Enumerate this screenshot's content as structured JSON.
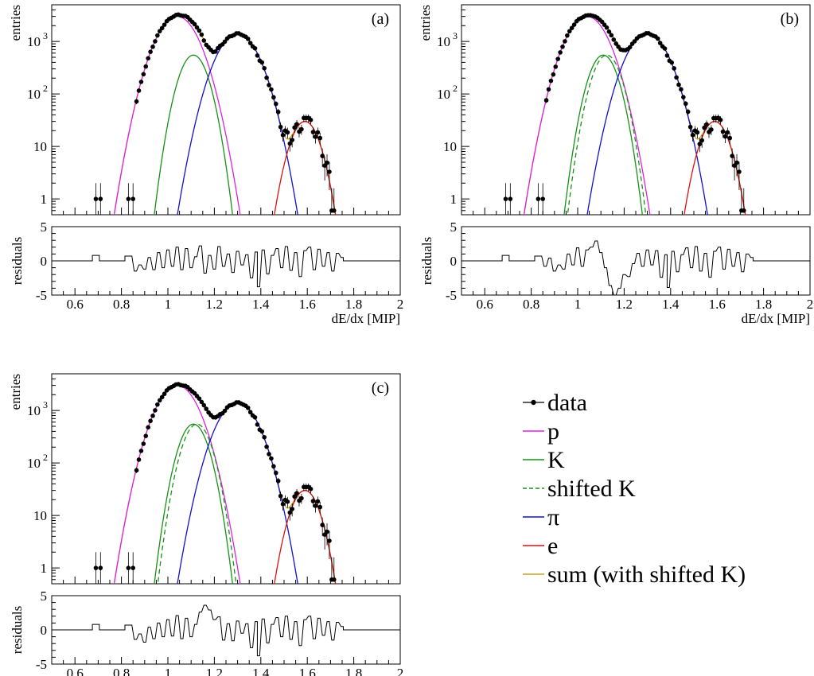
{
  "chart_data": {
    "type": "line",
    "xlabel": "dE/dx [MIP]",
    "ylabel": "entries",
    "residual_ylabel": "residuals",
    "xlim": [
      0.5,
      2.0
    ],
    "ylim": [
      0.5,
      5000
    ],
    "yscale": "log",
    "residual_ylim": [
      -5,
      5
    ],
    "x_ticks": [
      0.6,
      0.8,
      1.0,
      1.2,
      1.4,
      1.6,
      1.8,
      2.0
    ],
    "x_tick_labels": [
      "0.6",
      "0.8",
      "1",
      "1.2",
      "1.4",
      "1.6",
      "1.8",
      "2"
    ],
    "y_tick_labels": [
      {
        "value": 1,
        "label": "1"
      },
      {
        "value": 10,
        "label": "10"
      },
      {
        "value": 100,
        "label": "10",
        "exp": "2"
      },
      {
        "value": 1000,
        "label": "10",
        "exp": "3"
      }
    ],
    "residual_tick_labels": [
      {
        "value": 5,
        "label": "5"
      },
      {
        "value": 0,
        "label": "0"
      },
      {
        "value": -5,
        "label": "-5"
      }
    ],
    "grid": false,
    "legend_position": "right",
    "legend": [
      {
        "label": "data",
        "style": "marker",
        "color": "#000000"
      },
      {
        "label": "p",
        "style": "line",
        "color": "#e020e0"
      },
      {
        "label": "K",
        "style": "line",
        "color": "#169116"
      },
      {
        "label": "shifted K",
        "style": "dashed",
        "color": "#169116"
      },
      {
        "label": "π",
        "style": "line",
        "color": "#1010d0"
      },
      {
        "label": "e",
        "style": "line",
        "color": "#e01010"
      },
      {
        "label": "sum (with shifted K)",
        "style": "line",
        "color": "#c9a227"
      }
    ],
    "components": [
      {
        "label": "p",
        "amplitude": 3000,
        "mean": 1.04,
        "sigma": 0.065
      },
      {
        "label": "K",
        "amplitude": 550,
        "mean": 1.11,
        "sigma": 0.045
      },
      {
        "label": "shifted K",
        "amplitude": 550,
        "mean": 1.125,
        "sigma": 0.045
      },
      {
        "label": "π",
        "amplitude": 1400,
        "mean": 1.3,
        "sigma": 0.065
      },
      {
        "label": "e",
        "amplitude": 30,
        "mean": 1.59,
        "sigma": 0.046
      }
    ],
    "panels": [
      {
        "label": "(a)",
        "show_shifted_k": false,
        "isolated_points": [
          {
            "x": 0.69,
            "y": 1
          },
          {
            "x": 0.71,
            "y": 1
          },
          {
            "x": 0.83,
            "y": 1
          },
          {
            "x": 0.85,
            "y": 1
          }
        ],
        "residuals": [
          {
            "x": 0.68,
            "r": 0.8
          },
          {
            "x": 0.7,
            "r": 0.8
          },
          {
            "x": 0.82,
            "r": 0.7
          },
          {
            "x": 0.84,
            "r": 0.7
          },
          {
            "x": 0.86,
            "r": -1.5
          },
          {
            "x": 0.88,
            "r": -0.6
          },
          {
            "x": 0.9,
            "r": -1.2
          },
          {
            "x": 0.92,
            "r": 0.5
          },
          {
            "x": 0.94,
            "r": -1.3
          },
          {
            "x": 0.96,
            "r": 1.2
          },
          {
            "x": 0.98,
            "r": -1.0
          },
          {
            "x": 1.0,
            "r": 1.6
          },
          {
            "x": 1.02,
            "r": -0.8
          },
          {
            "x": 1.04,
            "r": 2.0
          },
          {
            "x": 1.06,
            "r": -1.3
          },
          {
            "x": 1.08,
            "r": 1.8
          },
          {
            "x": 1.1,
            "r": -1.0
          },
          {
            "x": 1.12,
            "r": 0.6
          },
          {
            "x": 1.14,
            "r": 2.2
          },
          {
            "x": 1.16,
            "r": -1.8
          },
          {
            "x": 1.18,
            "r": 0.8
          },
          {
            "x": 1.2,
            "r": -1.2
          },
          {
            "x": 1.22,
            "r": 2.1
          },
          {
            "x": 1.24,
            "r": -0.8
          },
          {
            "x": 1.26,
            "r": 1.0
          },
          {
            "x": 1.28,
            "r": -1.7
          },
          {
            "x": 1.3,
            "r": 1.4
          },
          {
            "x": 1.32,
            "r": -0.6
          },
          {
            "x": 1.34,
            "r": 0.9
          },
          {
            "x": 1.36,
            "r": -2.5
          },
          {
            "x": 1.38,
            "r": 1.3
          },
          {
            "x": 1.39,
            "r": -3.8
          },
          {
            "x": 1.41,
            "r": 1.6
          },
          {
            "x": 1.43,
            "r": -1.9
          },
          {
            "x": 1.45,
            "r": 0.8
          },
          {
            "x": 1.47,
            "r": 1.8
          },
          {
            "x": 1.49,
            "r": -1.0
          },
          {
            "x": 1.51,
            "r": 2.1
          },
          {
            "x": 1.53,
            "r": -1.4
          },
          {
            "x": 1.55,
            "r": 1.2
          },
          {
            "x": 1.57,
            "r": -2.3
          },
          {
            "x": 1.59,
            "r": 1.5
          },
          {
            "x": 1.61,
            "r": 2.0
          },
          {
            "x": 1.63,
            "r": -1.3
          },
          {
            "x": 1.65,
            "r": 1.7
          },
          {
            "x": 1.67,
            "r": -0.8
          },
          {
            "x": 1.69,
            "r": 1.2
          },
          {
            "x": 1.71,
            "r": -1.5
          },
          {
            "x": 1.73,
            "r": 1.1
          },
          {
            "x": 1.75,
            "r": 0.5
          }
        ]
      },
      {
        "label": "(b)",
        "show_shifted_k": true,
        "isolated_points": [
          {
            "x": 0.69,
            "y": 1
          },
          {
            "x": 0.71,
            "y": 1
          },
          {
            "x": 0.83,
            "y": 1
          },
          {
            "x": 0.85,
            "y": 1
          }
        ],
        "residuals": [
          {
            "x": 0.68,
            "r": 0.8
          },
          {
            "x": 0.7,
            "r": 0.8
          },
          {
            "x": 0.82,
            "r": 0.7
          },
          {
            "x": 0.84,
            "r": 0.7
          },
          {
            "x": 0.86,
            "r": -0.8
          },
          {
            "x": 0.88,
            "r": 0.4
          },
          {
            "x": 0.9,
            "r": -1.5
          },
          {
            "x": 0.92,
            "r": -0.6
          },
          {
            "x": 0.94,
            "r": -1.2
          },
          {
            "x": 0.96,
            "r": 1.0
          },
          {
            "x": 0.98,
            "r": -0.6
          },
          {
            "x": 1.0,
            "r": 1.9
          },
          {
            "x": 1.02,
            "r": -0.8
          },
          {
            "x": 1.04,
            "r": 1.6
          },
          {
            "x": 1.06,
            "r": 2.0
          },
          {
            "x": 1.08,
            "r": 2.9
          },
          {
            "x": 1.1,
            "r": 1.2
          },
          {
            "x": 1.12,
            "r": -1.0
          },
          {
            "x": 1.14,
            "r": -3.6
          },
          {
            "x": 1.16,
            "r": -5.0
          },
          {
            "x": 1.18,
            "r": -4.0
          },
          {
            "x": 1.2,
            "r": -2.0
          },
          {
            "x": 1.22,
            "r": -2.3
          },
          {
            "x": 1.24,
            "r": -0.4
          },
          {
            "x": 1.26,
            "r": 1.1
          },
          {
            "x": 1.28,
            "r": -0.8
          },
          {
            "x": 1.3,
            "r": 1.6
          },
          {
            "x": 1.32,
            "r": -0.6
          },
          {
            "x": 1.34,
            "r": 1.5
          },
          {
            "x": 1.36,
            "r": -2.4
          },
          {
            "x": 1.38,
            "r": 0.9
          },
          {
            "x": 1.39,
            "r": -3.9
          },
          {
            "x": 1.41,
            "r": 1.4
          },
          {
            "x": 1.43,
            "r": -1.6
          },
          {
            "x": 1.45,
            "r": 0.9
          },
          {
            "x": 1.47,
            "r": 1.9
          },
          {
            "x": 1.49,
            "r": -1.0
          },
          {
            "x": 1.51,
            "r": 2.1
          },
          {
            "x": 1.53,
            "r": -1.5
          },
          {
            "x": 1.55,
            "r": 1.1
          },
          {
            "x": 1.57,
            "r": -2.4
          },
          {
            "x": 1.59,
            "r": 1.4
          },
          {
            "x": 1.61,
            "r": 2.0
          },
          {
            "x": 1.63,
            "r": -1.2
          },
          {
            "x": 1.65,
            "r": 1.7
          },
          {
            "x": 1.67,
            "r": -0.8
          },
          {
            "x": 1.69,
            "r": 1.2
          },
          {
            "x": 1.71,
            "r": -1.6
          },
          {
            "x": 1.73,
            "r": 1.0
          },
          {
            "x": 1.75,
            "r": 0.5
          }
        ]
      },
      {
        "label": "(c)",
        "show_shifted_k": true,
        "isolated_points": [
          {
            "x": 0.69,
            "y": 1
          },
          {
            "x": 0.71,
            "y": 1
          },
          {
            "x": 0.83,
            "y": 1
          },
          {
            "x": 0.85,
            "y": 1
          }
        ],
        "residuals": [
          {
            "x": 0.68,
            "r": 0.8
          },
          {
            "x": 0.7,
            "r": 0.8
          },
          {
            "x": 0.82,
            "r": 0.7
          },
          {
            "x": 0.84,
            "r": 0.7
          },
          {
            "x": 0.86,
            "r": -1.4
          },
          {
            "x": 0.88,
            "r": -0.6
          },
          {
            "x": 0.9,
            "r": -1.8
          },
          {
            "x": 0.92,
            "r": 0.4
          },
          {
            "x": 0.94,
            "r": -1.3
          },
          {
            "x": 0.96,
            "r": 1.0
          },
          {
            "x": 0.98,
            "r": -1.0
          },
          {
            "x": 1.0,
            "r": 1.5
          },
          {
            "x": 1.02,
            "r": -0.9
          },
          {
            "x": 1.04,
            "r": 2.1
          },
          {
            "x": 1.06,
            "r": -1.3
          },
          {
            "x": 1.08,
            "r": 1.7
          },
          {
            "x": 1.1,
            "r": -1.0
          },
          {
            "x": 1.12,
            "r": 0.8
          },
          {
            "x": 1.14,
            "r": 2.6
          },
          {
            "x": 1.16,
            "r": 3.6
          },
          {
            "x": 1.18,
            "r": 2.9
          },
          {
            "x": 1.2,
            "r": 1.5
          },
          {
            "x": 1.22,
            "r": 1.9
          },
          {
            "x": 1.24,
            "r": -1.5
          },
          {
            "x": 1.26,
            "r": 0.9
          },
          {
            "x": 1.28,
            "r": -1.6
          },
          {
            "x": 1.3,
            "r": 1.3
          },
          {
            "x": 1.32,
            "r": -0.5
          },
          {
            "x": 1.34,
            "r": 0.9
          },
          {
            "x": 1.36,
            "r": -2.6
          },
          {
            "x": 1.38,
            "r": 1.2
          },
          {
            "x": 1.39,
            "r": -3.8
          },
          {
            "x": 1.41,
            "r": 1.6
          },
          {
            "x": 1.43,
            "r": -1.9
          },
          {
            "x": 1.45,
            "r": 0.8
          },
          {
            "x": 1.47,
            "r": 1.8
          },
          {
            "x": 1.49,
            "r": -1.0
          },
          {
            "x": 1.51,
            "r": 2.0
          },
          {
            "x": 1.53,
            "r": -1.4
          },
          {
            "x": 1.55,
            "r": 1.2
          },
          {
            "x": 1.57,
            "r": -2.3
          },
          {
            "x": 1.59,
            "r": 1.5
          },
          {
            "x": 1.61,
            "r": 2.0
          },
          {
            "x": 1.63,
            "r": -1.3
          },
          {
            "x": 1.65,
            "r": 1.7
          },
          {
            "x": 1.67,
            "r": -0.8
          },
          {
            "x": 1.69,
            "r": 1.2
          },
          {
            "x": 1.71,
            "r": -1.5
          },
          {
            "x": 1.73,
            "r": 1.1
          },
          {
            "x": 1.75,
            "r": 0.5
          }
        ]
      }
    ]
  }
}
